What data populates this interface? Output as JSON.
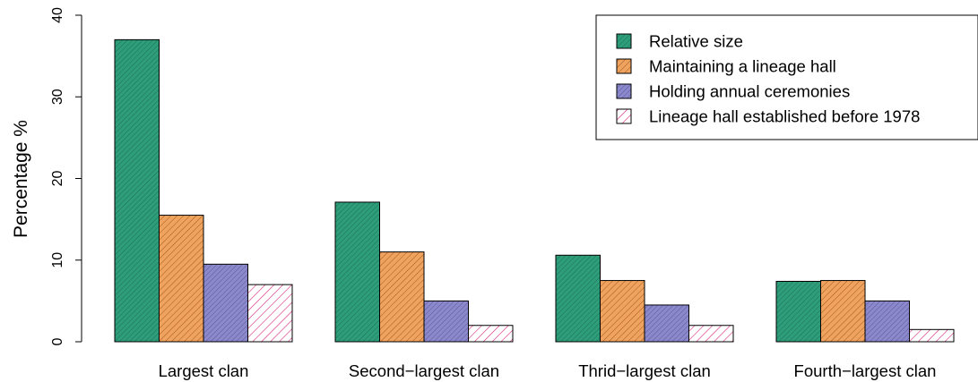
{
  "chart_data": {
    "type": "bar",
    "title": "",
    "xlabel": "",
    "ylabel": "Percentage %",
    "ylim": [
      0,
      40
    ],
    "yticks": [
      "0",
      "10",
      "20",
      "30",
      "40"
    ],
    "categories": [
      "Largest clan",
      "Second−largest clan",
      "Thrid−largest clan",
      "Fourth−largest clan"
    ],
    "series": [
      {
        "name": "Relative size",
        "values": [
          37.0,
          17.1,
          10.6,
          7.4
        ],
        "color": "#2e9e7a",
        "pattern": "dense-hatch"
      },
      {
        "name": "Maintaining a lineage hall",
        "values": [
          15.5,
          11.0,
          7.5,
          7.5
        ],
        "color": "#f0a35e",
        "pattern": "hatch"
      },
      {
        "name": "Holding annual ceremonies",
        "values": [
          9.5,
          5.0,
          4.5,
          5.0
        ],
        "color": "#8c88cc",
        "pattern": "dense-hatch"
      },
      {
        "name": "Lineage hall established before 1978",
        "values": [
          7.0,
          2.0,
          2.0,
          1.5
        ],
        "color": "#d6267a",
        "pattern": "sparse-hatch"
      }
    ],
    "legend_position": "top-right",
    "grid": false
  }
}
